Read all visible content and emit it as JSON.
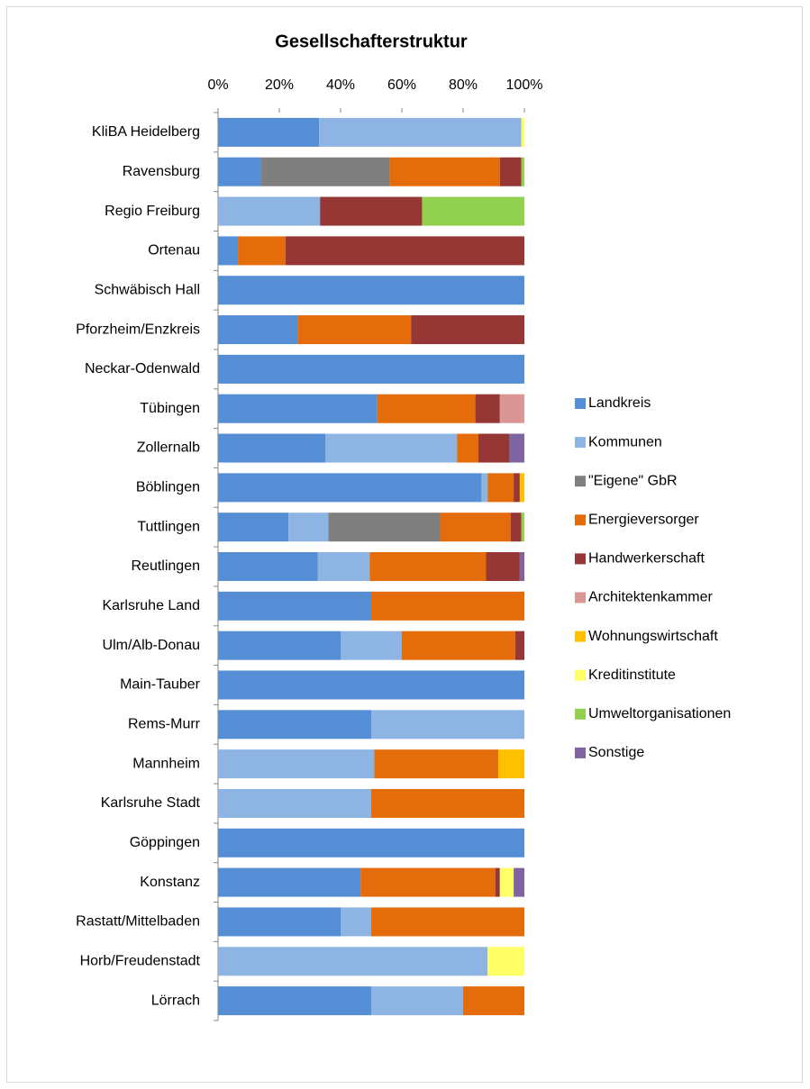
{
  "chart_data": {
    "type": "stacked-barh",
    "title": "Gesellschafterstruktur",
    "categories": [
      "KliBA Heidelberg",
      "Ravensburg",
      "Regio Freiburg",
      "Ortenau",
      "Schwäbisch Hall",
      "Pforzheim/Enzkreis",
      "Neckar-Odenwald",
      "Tübingen",
      "Zollernalb",
      "Böblingen",
      "Tuttlingen",
      "Reutlingen",
      "Karlsruhe Land",
      "Ulm/Alb-Donau",
      "Main-Tauber",
      "Rems-Murr",
      "Mannheim",
      "Karlsruhe Stadt",
      "Göppingen",
      "Konstanz",
      "Rastatt/Mittelbaden",
      "Horb/Freudenstadt",
      "Lörrach"
    ],
    "series": [
      {
        "name": "Landkreis",
        "color": "#558ed5",
        "values": [
          33,
          14,
          0,
          6.5,
          100,
          26,
          100,
          52,
          35,
          86,
          23,
          32.5,
          50,
          40,
          100,
          50,
          0,
          0,
          100,
          46.5,
          40,
          0,
          50
        ]
      },
      {
        "name": "Kommunen",
        "color": "#8eb4e3",
        "values": [
          66,
          0,
          33.3,
          0,
          0,
          0,
          0,
          0,
          43,
          2,
          13,
          17,
          0,
          20,
          0,
          50,
          51,
          50,
          0,
          0,
          10,
          88,
          30
        ]
      },
      {
        "name": "\"Eigene\" GbR",
        "color": "#7f7f7f",
        "values": [
          0,
          42,
          0,
          0,
          0,
          0,
          0,
          0,
          0,
          0,
          36.5,
          0,
          0,
          0,
          0,
          0,
          0,
          0,
          0,
          0,
          0,
          0,
          0
        ]
      },
      {
        "name": "Energieversorger",
        "color": "#e46c0a",
        "values": [
          0,
          36,
          0,
          15.5,
          0,
          37,
          0,
          32,
          7,
          8.5,
          23,
          38,
          50,
          37,
          0,
          0,
          40.5,
          50,
          0,
          44,
          50,
          0,
          20
        ]
      },
      {
        "name": "Handwerkerschaft",
        "color": "#953735",
        "values": [
          0,
          7,
          33.3,
          78,
          0,
          37,
          0,
          8,
          10,
          2,
          3.5,
          11,
          0,
          3,
          0,
          0,
          0,
          0,
          0,
          1.5,
          0,
          0,
          0
        ]
      },
      {
        "name": "Architektenkammer",
        "color": "#d99694",
        "values": [
          0,
          0,
          0,
          0,
          0,
          0,
          0,
          8,
          0,
          0,
          0,
          0,
          0,
          0,
          0,
          0,
          0,
          0,
          0,
          0,
          0,
          0,
          0
        ]
      },
      {
        "name": "Wohnungswirtschaft",
        "color": "#ffc000",
        "values": [
          0,
          0,
          0,
          0,
          0,
          0,
          0,
          0,
          0,
          1.5,
          0,
          0,
          0,
          0,
          0,
          0,
          8.5,
          0,
          0,
          0,
          0,
          0,
          0
        ]
      },
      {
        "name": "Kreditinstitute",
        "color": "#ffff66",
        "values": [
          1,
          0,
          0,
          0,
          0,
          0,
          0,
          0,
          0,
          0,
          0,
          0,
          0,
          0,
          0,
          0,
          0,
          0,
          0,
          4.5,
          0,
          12,
          0
        ]
      },
      {
        "name": "Umweltorganisationen",
        "color": "#92d050",
        "values": [
          0,
          1,
          33.4,
          0,
          0,
          0,
          0,
          0,
          0,
          0,
          1,
          0,
          0,
          0,
          0,
          0,
          0,
          0,
          0,
          0,
          0,
          0,
          0
        ]
      },
      {
        "name": "Sonstige",
        "color": "#8064a2",
        "values": [
          0,
          0,
          0,
          0,
          0,
          0,
          0,
          0,
          5,
          0,
          0,
          1.5,
          0,
          0,
          0,
          0,
          0,
          0,
          0,
          3.5,
          0,
          0,
          0
        ]
      }
    ],
    "xlim": [
      0,
      100
    ],
    "xticks": [
      {
        "value": 0,
        "label": "0%"
      },
      {
        "value": 20,
        "label": "20%"
      },
      {
        "value": 40,
        "label": "40%"
      },
      {
        "value": 60,
        "label": "60%"
      },
      {
        "value": 80,
        "label": "80%"
      },
      {
        "value": 100,
        "label": "100%"
      }
    ],
    "legend": "right"
  }
}
